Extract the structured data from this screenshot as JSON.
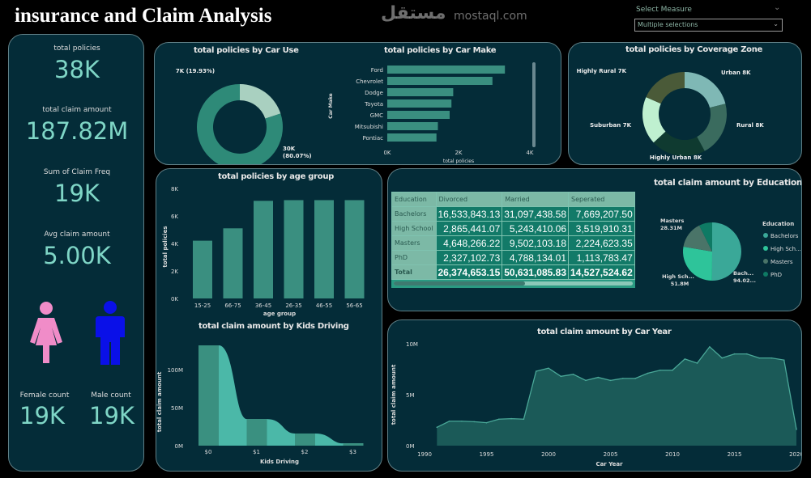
{
  "header": {
    "title": "insurance and Claim Analysis"
  },
  "slicer": {
    "label": "Select Measure",
    "value": "Multiple selections"
  },
  "kpis": [
    {
      "label": "total policies",
      "value": "38K"
    },
    {
      "label": "total claim amount",
      "value": "187.82M"
    },
    {
      "label": "Sum of Claim Freq",
      "value": "19K"
    },
    {
      "label": "Avg claim amount",
      "value": "5.00K"
    }
  ],
  "gender": {
    "female_label": "Female count",
    "female_value": "19K",
    "male_label": "Male count",
    "male_value": "19K",
    "female_color": "#f08cc8",
    "male_color": "#0a10e8"
  },
  "chart_data": [
    {
      "id": "car_use",
      "type": "pie",
      "title": "total policies by Car Use",
      "hole": true,
      "slices": [
        {
          "label": "7K (19.93%)",
          "value": 19.93,
          "color": "#a9d0c0"
        },
        {
          "label": "30K (80.07%)",
          "value": 80.07,
          "color": "#2e8a78"
        }
      ]
    },
    {
      "id": "car_make",
      "type": "bar",
      "orientation": "horizontal",
      "title": "total policies by Car Make",
      "xlabel": "total policies",
      "ylabel": "Car Make",
      "categories": [
        "Ford",
        "Chevrolet",
        "Dodge",
        "Toyota",
        "GMC",
        "Mitsubishi",
        "Pontiac"
      ],
      "values": [
        3300,
        2950,
        1850,
        1800,
        1750,
        1420,
        1380
      ],
      "xlim": [
        0,
        4000
      ],
      "xticks": [
        "0K",
        "2K",
        "4K"
      ],
      "color": "#3a8f80"
    },
    {
      "id": "coverage",
      "type": "pie",
      "hole": true,
      "title": "total policies by Coverage Zone",
      "slices": [
        {
          "label": "Urban 8K",
          "value": 8,
          "color": "#7fb8b5"
        },
        {
          "label": "Rural 8K",
          "value": 8,
          "color": "#3a6b5e"
        },
        {
          "label": "Highly Urban 8K",
          "value": 8,
          "color": "#0f3a30"
        },
        {
          "label": "Suburban 7K",
          "value": 7,
          "color": "#bff0d0"
        },
        {
          "label": "Highly Rural 7K",
          "value": 7,
          "color": "#4a5a38"
        }
      ]
    },
    {
      "id": "age",
      "type": "bar",
      "title": "total policies by age group",
      "xlabel": "age group",
      "ylabel": "total policies",
      "categories": [
        "15-25",
        "66-75",
        "36-45",
        "26-35",
        "46-55",
        "56-65"
      ],
      "values": [
        4200,
        5100,
        7100,
        7150,
        7150,
        7150
      ],
      "ylim": [
        0,
        8000
      ],
      "yticks": [
        "0K",
        "2K",
        "4K",
        "6K",
        "8K"
      ],
      "color": "#3a8f80"
    },
    {
      "id": "kids",
      "type": "area",
      "title": "total claim amount by Kids Driving",
      "xlabel": "Kids Driving",
      "ylabel": "total claim amount",
      "categories": [
        "$0",
        "$1",
        "$2",
        "$3"
      ],
      "values": [
        132,
        35,
        16,
        3
      ],
      "unit": "M",
      "ylim": [
        0,
        140
      ],
      "yticks": [
        "0M",
        "50M",
        "100M"
      ],
      "color": "#4bb8a8"
    },
    {
      "id": "education",
      "type": "table",
      "title": "total claim amount by Education",
      "columns": [
        "Education",
        "Divorced",
        "Married",
        "Seperated"
      ],
      "rows": [
        [
          "Bachelors",
          "16,533,843.13",
          "31,097,438.58",
          "7,669,207.50"
        ],
        [
          "High School",
          "2,865,441.07",
          "5,243,410.06",
          "3,519,910.31"
        ],
        [
          "Masters",
          "4,648,266.22",
          "9,502,103.18",
          "2,224,623.35"
        ],
        [
          "PhD",
          "2,327,102.73",
          "4,788,134.01",
          "1,113,783.47"
        ]
      ],
      "total": [
        "Total",
        "26,374,653.15",
        "50,631,085.83",
        "14,527,524.62"
      ]
    },
    {
      "id": "edu_pie",
      "type": "pie",
      "legend_title": "Education",
      "legend": [
        "Bachelors",
        "High Sch...",
        "Masters",
        "PhD"
      ],
      "slices": [
        {
          "label": "Bach... 94.02...",
          "value": 94.02,
          "color": "#3aa898"
        },
        {
          "label": "High Sch... 51.8M",
          "value": 51.8,
          "color": "#2ec49a"
        },
        {
          "label": "Masters 28.31M",
          "value": 28.31,
          "color": "#4a7468"
        },
        {
          "label": "",
          "value": 13.69,
          "color": "#0e7a64"
        }
      ]
    },
    {
      "id": "car_year",
      "type": "area",
      "title": "total claim amount by Car Year",
      "xlabel": "Car Year",
      "ylabel": "total claim amount",
      "x": [
        1991,
        1992,
        1993,
        1994,
        1995,
        1996,
        1997,
        1998,
        1999,
        2000,
        2001,
        2002,
        2003,
        2004,
        2005,
        2006,
        2007,
        2008,
        2009,
        2010,
        2011,
        2012,
        2013,
        2014,
        2015,
        2016,
        2017,
        2018,
        2019,
        2020
      ],
      "values": [
        1.8,
        2.4,
        2.4,
        2.35,
        2.25,
        2.6,
        2.65,
        2.6,
        7.3,
        7.6,
        6.8,
        7.0,
        6.4,
        6.7,
        6.4,
        6.6,
        6.6,
        7.1,
        7.4,
        7.4,
        8.5,
        8.1,
        9.7,
        8.6,
        9.0,
        9.0,
        8.6,
        8.6,
        8.4,
        1.6
      ],
      "unit": "M",
      "xlim": [
        1990,
        2020
      ],
      "ylim": [
        0,
        10
      ],
      "xticks": [
        "1990",
        "1995",
        "2000",
        "2005",
        "2010",
        "2015",
        "2020"
      ],
      "yticks": [
        "0M",
        "5M",
        "10M"
      ],
      "color": "#1b5a58",
      "line": "#4aa898"
    }
  ],
  "watermark": {
    "arabic": "مستقل",
    "latin": "mostaql.com"
  }
}
